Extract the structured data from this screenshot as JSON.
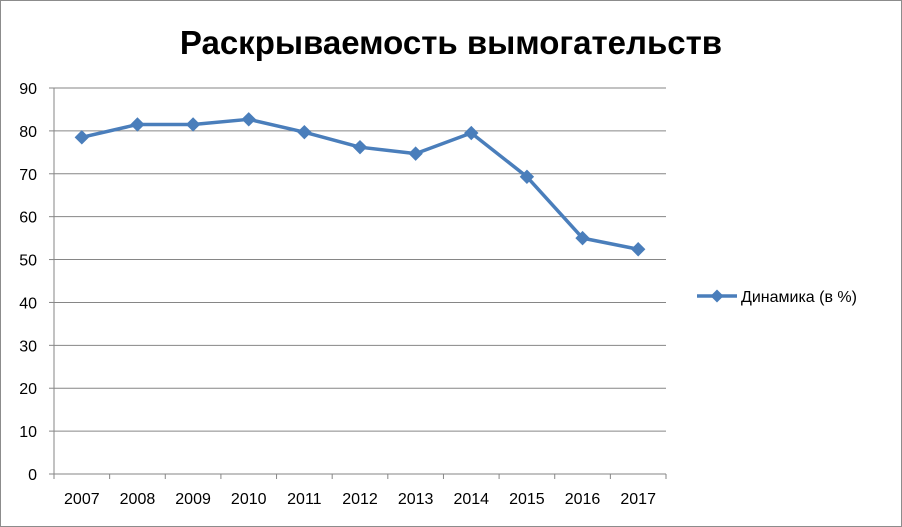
{
  "chart_data": {
    "type": "line",
    "title": "Раскрываемость вымогательств",
    "xlabel": "",
    "ylabel": "",
    "categories": [
      "2007",
      "2008",
      "2009",
      "2010",
      "2011",
      "2012",
      "2013",
      "2014",
      "2015",
      "2016",
      "2017"
    ],
    "series": [
      {
        "name": "Динамика (в %)",
        "values": [
          78.5,
          81.5,
          81.5,
          82.7,
          79.7,
          76.2,
          74.7,
          79.5,
          69.3,
          55.0,
          52.4
        ],
        "color": "#4a7ebb",
        "marker": "diamond"
      }
    ],
    "ylim": [
      0,
      90
    ],
    "yticks": [
      0,
      10,
      20,
      30,
      40,
      50,
      60,
      70,
      80,
      90
    ],
    "grid": true,
    "legend": "right"
  }
}
